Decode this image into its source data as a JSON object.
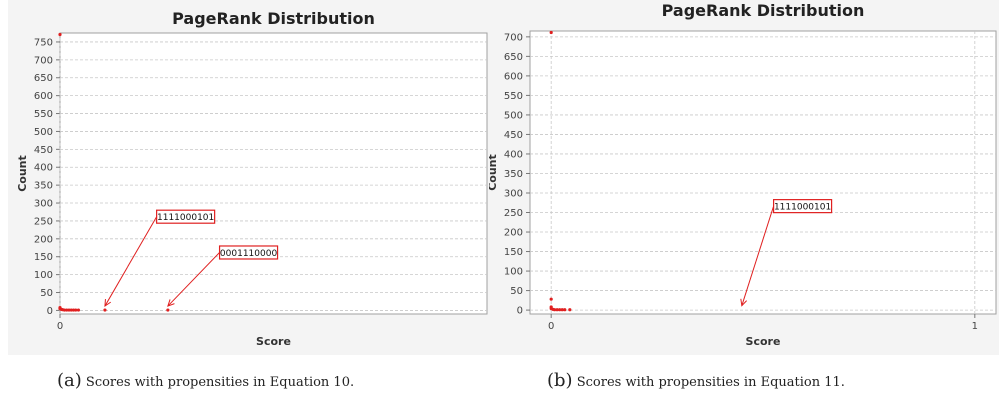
{
  "chart_data": [
    {
      "type": "scatter",
      "title": "PageRank Distribution",
      "xlabel": "Score",
      "ylabel": "Count",
      "xlim": [
        0,
        0.95
      ],
      "ylim": [
        -10,
        775
      ],
      "x_ticks": [
        0
      ],
      "y_ticks": [
        0,
        50,
        100,
        150,
        200,
        250,
        300,
        350,
        400,
        450,
        500,
        550,
        600,
        650,
        700,
        750
      ],
      "grid": true,
      "series": [
        {
          "color": "#e02020",
          "points": [
            {
              "x": 0.0,
              "y": 780
            },
            {
              "x": 0.0,
              "y": 8
            },
            {
              "x": 0.0,
              "y": 5
            },
            {
              "x": 0.003,
              "y": 3
            },
            {
              "x": 0.006,
              "y": 2
            },
            {
              "x": 0.01,
              "y": 1
            },
            {
              "x": 0.015,
              "y": 1
            },
            {
              "x": 0.02,
              "y": 1
            },
            {
              "x": 0.025,
              "y": 1
            },
            {
              "x": 0.03,
              "y": 1
            },
            {
              "x": 0.035,
              "y": 1
            },
            {
              "x": 0.041,
              "y": 1
            },
            {
              "x": 0.1,
              "y": 1
            },
            {
              "x": 0.24,
              "y": 1
            }
          ]
        }
      ],
      "annotations": [
        {
          "text": "1111000101",
          "x": 0.1,
          "y": 1,
          "box": [
            0.215,
            280
          ]
        },
        {
          "text": "0001110000",
          "x": 0.24,
          "y": 1,
          "box": [
            0.355,
            180
          ]
        }
      ]
    },
    {
      "type": "scatter",
      "title": "PageRank Distribution",
      "xlabel": "Score",
      "ylabel": "Count",
      "xlim": [
        -0.05,
        1.05
      ],
      "ylim": [
        -10,
        715
      ],
      "x_ticks": [
        0,
        1
      ],
      "y_ticks": [
        0,
        50,
        100,
        150,
        200,
        250,
        300,
        350,
        400,
        450,
        500,
        550,
        600,
        650,
        700
      ],
      "grid": true,
      "series": [
        {
          "color": "#e02020",
          "points": [
            {
              "x": 0.0,
              "y": 720
            },
            {
              "x": 0.0,
              "y": 28
            },
            {
              "x": 0.0,
              "y": 8
            },
            {
              "x": 0.0,
              "y": 4
            },
            {
              "x": 0.004,
              "y": 2
            },
            {
              "x": 0.008,
              "y": 1
            },
            {
              "x": 0.014,
              "y": 1
            },
            {
              "x": 0.02,
              "y": 1
            },
            {
              "x": 0.026,
              "y": 1
            },
            {
              "x": 0.032,
              "y": 1
            },
            {
              "x": 0.044,
              "y": 1
            }
          ]
        }
      ],
      "annotations": [
        {
          "text": "1111000101",
          "x": 0.45,
          "y": 1,
          "box": [
            0.525,
            283
          ]
        }
      ]
    }
  ],
  "captions": [
    {
      "label": "(a)",
      "text": "Scores with propensities in Equation 10."
    },
    {
      "label": "(b)",
      "text": "Scores with propensities in Equation 11."
    }
  ]
}
